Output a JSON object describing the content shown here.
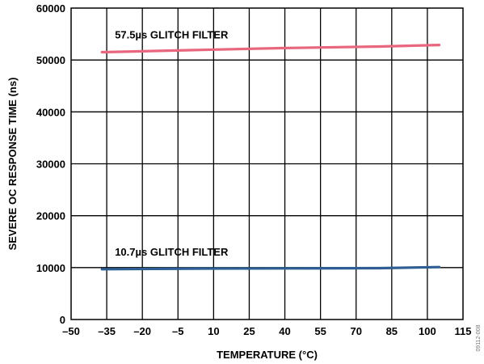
{
  "figure_id": "09112-008",
  "chart_data": {
    "type": "line",
    "xlabel": "TEMPERATURE (°C)",
    "ylabel": "SEVERE OC RESPONSE TIME (ns)",
    "xlim": [
      -50,
      115
    ],
    "ylim": [
      0,
      60000
    ],
    "x_ticks": [
      -50,
      -35,
      -20,
      -5,
      10,
      25,
      40,
      55,
      70,
      85,
      100,
      115
    ],
    "x_tick_labels": [
      "–50",
      "–35",
      "–20",
      "–5",
      "10",
      "25",
      "40",
      "55",
      "70",
      "85",
      "100",
      "115"
    ],
    "y_ticks": [
      0,
      10000,
      20000,
      30000,
      40000,
      50000,
      60000
    ],
    "y_tick_labels": [
      "0",
      "10000",
      "20000",
      "30000",
      "40000",
      "50000",
      "60000"
    ],
    "grid": true,
    "series": [
      {
        "name": "57.5µs GLITCH FILTER",
        "color": "#e8677e",
        "x": [
          -37,
          0,
          40,
          80,
          105
        ],
        "y": [
          51500,
          51900,
          52300,
          52600,
          52900
        ]
      },
      {
        "name": "10.7µs GLITCH FILTER",
        "color": "#2e5e94",
        "x": [
          -37,
          0,
          40,
          80,
          105
        ],
        "y": [
          9700,
          9800,
          9850,
          9900,
          10100
        ]
      }
    ]
  }
}
